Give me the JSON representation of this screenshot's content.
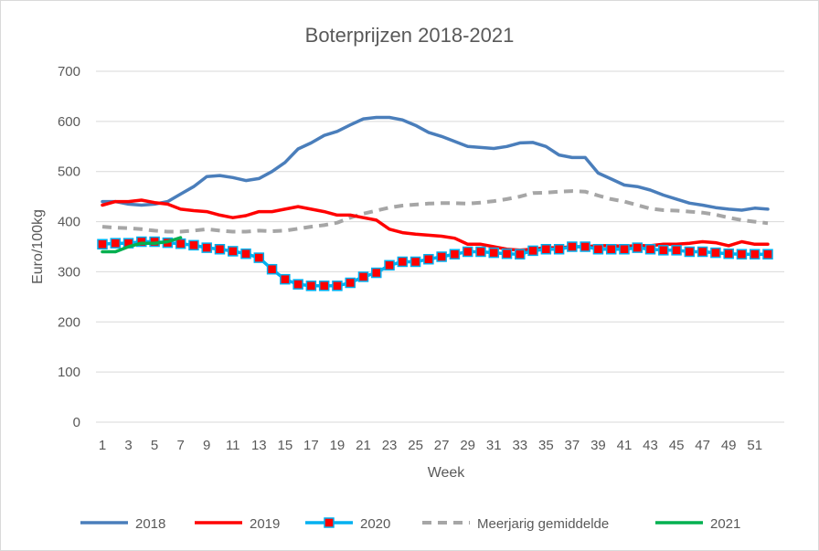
{
  "chart_data": {
    "type": "line",
    "title": "Boterprijzen 2018-2021",
    "xlabel": "Week",
    "ylabel": "Euro/100kg",
    "ylim": [
      0,
      700
    ],
    "yticks": [
      "0",
      "100",
      "200",
      "300",
      "400",
      "500",
      "600",
      "700"
    ],
    "xlim": [
      1,
      52
    ],
    "xticks": [
      "1",
      "3",
      "5",
      "7",
      "9",
      "11",
      "13",
      "15",
      "17",
      "19",
      "21",
      "23",
      "25",
      "27",
      "29",
      "31",
      "33",
      "35",
      "37",
      "39",
      "41",
      "43",
      "45",
      "47",
      "49",
      "51"
    ],
    "grid": "horizontal",
    "legend_position": "bottom",
    "series": [
      {
        "name": "2018",
        "color": "#4a7ebb",
        "style": "solid",
        "x": [
          1,
          2,
          3,
          4,
          5,
          6,
          7,
          8,
          9,
          10,
          11,
          12,
          13,
          14,
          15,
          16,
          17,
          18,
          19,
          20,
          21,
          22,
          23,
          24,
          25,
          26,
          27,
          28,
          29,
          30,
          31,
          32,
          33,
          34,
          35,
          36,
          37,
          38,
          39,
          40,
          41,
          42,
          43,
          44,
          45,
          46,
          47,
          48,
          49,
          50,
          51,
          52
        ],
        "values": [
          440,
          440,
          435,
          433,
          435,
          440,
          455,
          470,
          490,
          492,
          488,
          482,
          486,
          500,
          518,
          545,
          557,
          572,
          580,
          593,
          605,
          608,
          608,
          603,
          592,
          578,
          570,
          560,
          550,
          548,
          546,
          550,
          557,
          558,
          550,
          533,
          528,
          528,
          497,
          485,
          473,
          470,
          463,
          453,
          445,
          437,
          433,
          428,
          425,
          423,
          427,
          425
        ]
      },
      {
        "name": "2019",
        "color": "#ff0000",
        "style": "solid",
        "x": [
          1,
          2,
          3,
          4,
          5,
          6,
          7,
          8,
          9,
          10,
          11,
          12,
          13,
          14,
          15,
          16,
          17,
          18,
          19,
          20,
          21,
          22,
          23,
          24,
          25,
          26,
          27,
          28,
          29,
          30,
          31,
          32,
          33,
          34,
          35,
          36,
          37,
          38,
          39,
          40,
          41,
          42,
          43,
          44,
          45,
          46,
          47,
          48,
          49,
          50,
          51,
          52
        ],
        "values": [
          433,
          440,
          440,
          443,
          438,
          435,
          425,
          422,
          420,
          413,
          408,
          412,
          420,
          420,
          425,
          430,
          425,
          420,
          413,
          413,
          408,
          403,
          385,
          378,
          375,
          373,
          371,
          367,
          355,
          355,
          350,
          345,
          343,
          345,
          348,
          348,
          350,
          350,
          352,
          352,
          351,
          352,
          352,
          355,
          355,
          357,
          360,
          358,
          352,
          360,
          355,
          355
        ]
      },
      {
        "name": "2020",
        "color": "#00b0f0",
        "marker_color": "#ff0000",
        "style": "solid-with-square-markers",
        "x": [
          1,
          2,
          3,
          4,
          5,
          6,
          7,
          8,
          9,
          10,
          11,
          12,
          13,
          14,
          15,
          16,
          17,
          18,
          19,
          20,
          21,
          22,
          23,
          24,
          25,
          26,
          27,
          28,
          29,
          30,
          31,
          32,
          33,
          34,
          35,
          36,
          37,
          38,
          39,
          40,
          41,
          42,
          43,
          44,
          45,
          46,
          47,
          48,
          49,
          50,
          51,
          52
        ],
        "values": [
          355,
          357,
          357,
          360,
          360,
          358,
          356,
          353,
          348,
          345,
          341,
          336,
          328,
          305,
          285,
          275,
          272,
          272,
          272,
          278,
          290,
          298,
          313,
          320,
          320,
          325,
          330,
          335,
          340,
          340,
          338,
          336,
          335,
          342,
          345,
          345,
          350,
          350,
          345,
          345,
          345,
          348,
          345,
          343,
          343,
          340,
          340,
          338,
          336,
          335,
          335,
          335
        ]
      },
      {
        "name": "Meerjarig gemiddelde",
        "color": "#a6a6a6",
        "style": "dashed",
        "x": [
          1,
          2,
          3,
          4,
          5,
          6,
          7,
          8,
          9,
          10,
          11,
          12,
          13,
          14,
          15,
          16,
          17,
          18,
          19,
          20,
          21,
          22,
          23,
          24,
          25,
          26,
          27,
          28,
          29,
          30,
          31,
          32,
          33,
          34,
          35,
          36,
          37,
          38,
          39,
          40,
          41,
          42,
          43,
          44,
          45,
          46,
          47,
          48,
          49,
          50,
          51,
          52
        ],
        "values": [
          390,
          388,
          387,
          385,
          382,
          380,
          380,
          382,
          385,
          382,
          380,
          380,
          382,
          381,
          382,
          386,
          390,
          393,
          398,
          408,
          416,
          422,
          428,
          432,
          434,
          436,
          437,
          437,
          436,
          438,
          441,
          445,
          450,
          457,
          458,
          460,
          461,
          460,
          452,
          445,
          440,
          433,
          426,
          423,
          422,
          420,
          418,
          414,
          408,
          403,
          400,
          397
        ]
      },
      {
        "name": "2021",
        "color": "#00b050",
        "style": "solid",
        "x": [
          1,
          2,
          3,
          4,
          5,
          6,
          7
        ],
        "values": [
          340,
          340,
          350,
          357,
          357,
          360,
          368
        ]
      }
    ]
  }
}
